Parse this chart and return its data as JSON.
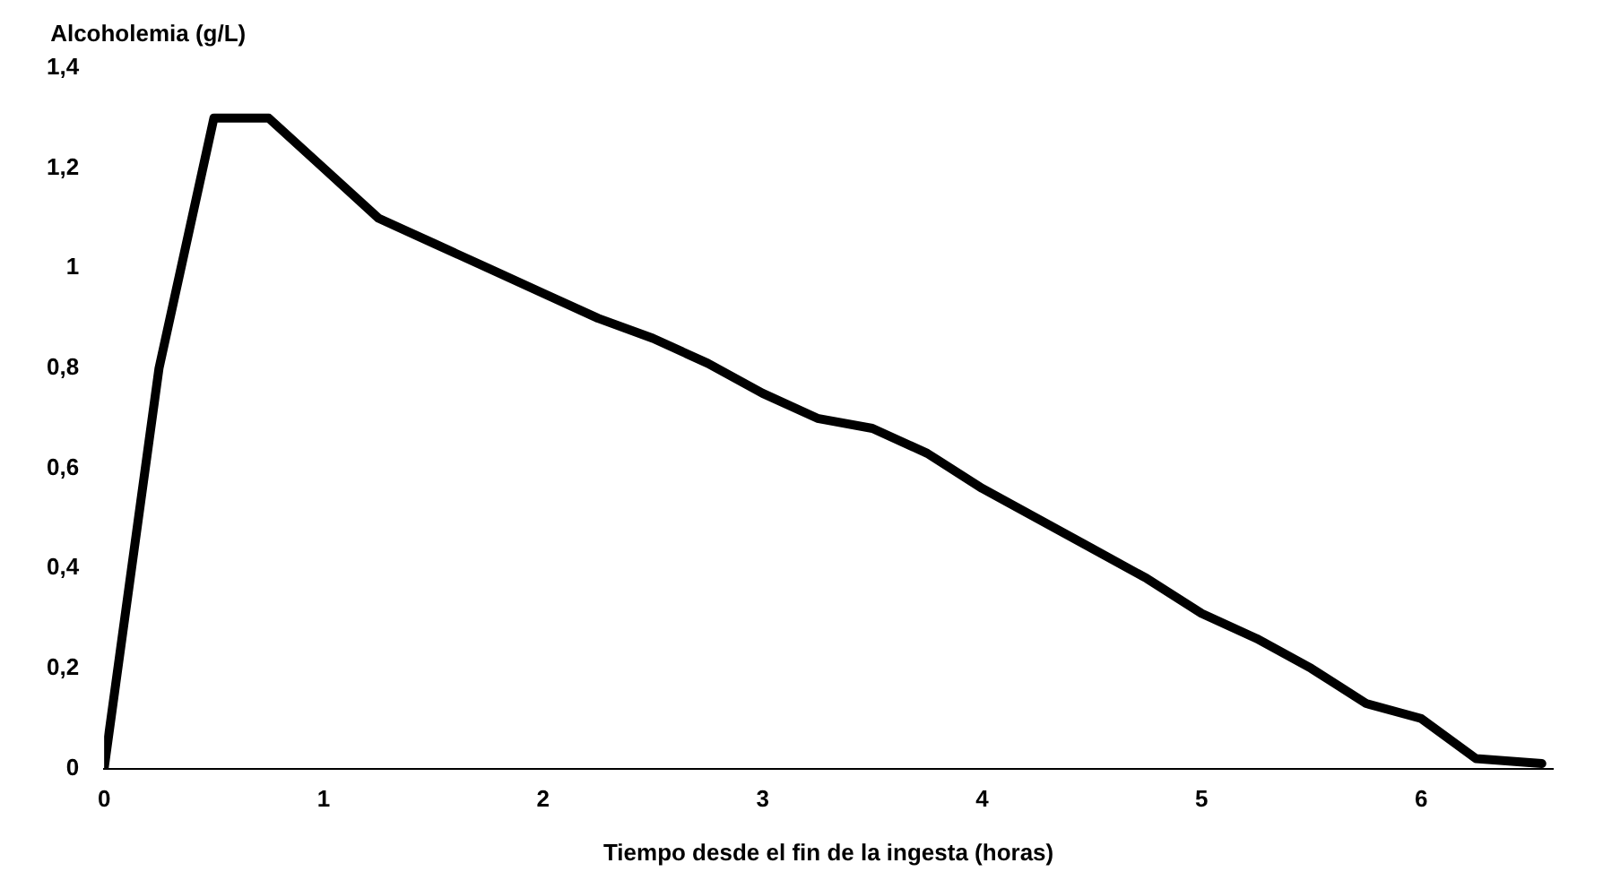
{
  "chart_data": {
    "type": "line",
    "xlabel": "Tiempo desde el fin de la ingesta (horas)",
    "ylabel": "Alcoholemia (g/L)",
    "x": [
      0,
      0.25,
      0.5,
      0.75,
      1,
      1.25,
      1.5,
      1.75,
      2,
      2.25,
      2.5,
      2.75,
      3,
      3.25,
      3.5,
      3.75,
      4,
      4.25,
      4.5,
      4.75,
      5,
      5.25,
      5.5,
      5.75,
      6,
      6.25,
      6.55
    ],
    "series": [
      {
        "color": "#000000",
        "values": [
          0,
          0.8,
          1.3,
          1.3,
          1.2,
          1.1,
          1.05,
          1.0,
          0.95,
          0.9,
          0.86,
          0.81,
          0.75,
          0.7,
          0.68,
          0.63,
          0.56,
          0.5,
          0.44,
          0.38,
          0.31,
          0.26,
          0.2,
          0.13,
          0.1,
          0.02,
          0.01
        ]
      }
    ],
    "xlim": [
      0,
      6.6
    ],
    "xticks": [
      0,
      1,
      2,
      3,
      4,
      5,
      6
    ],
    "ylim": [
      0,
      1.4
    ],
    "yticks": [
      0,
      {
        "value": 0.2,
        "label": "0,2"
      },
      {
        "value": 0.4,
        "label": "0,4"
      },
      {
        "value": 0.6,
        "label": "0,6"
      },
      {
        "value": 0.8,
        "label": "0,8"
      },
      1,
      {
        "value": 1.2,
        "label": "1,2"
      },
      {
        "value": 1.4,
        "label": "1,4"
      }
    ],
    "grid": false,
    "legend": false,
    "marker": "none",
    "line_style": "solid"
  }
}
